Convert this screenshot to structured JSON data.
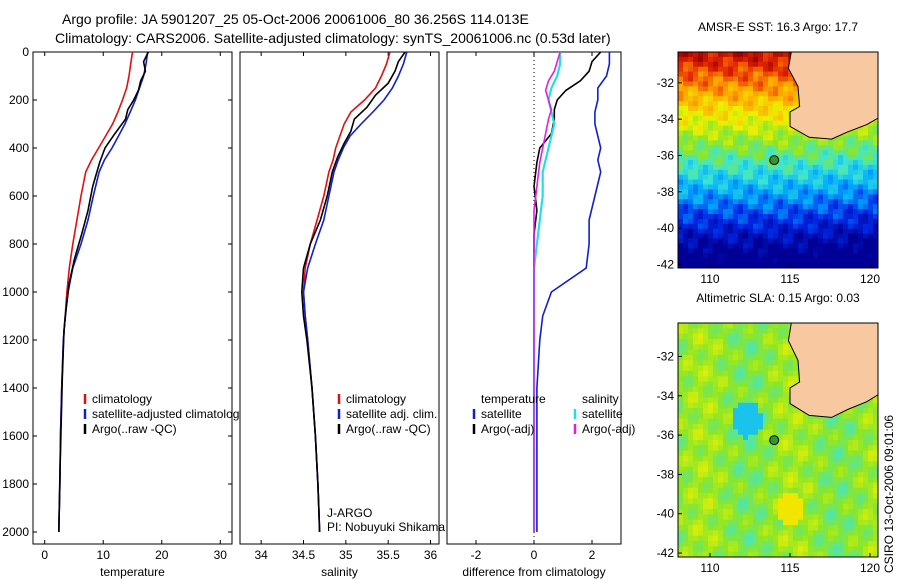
{
  "page": {
    "title_line1": "Argo profile: JA 5901207_25 05-Oct-2006 20061006_80 36.256S 114.013E",
    "title_line2": "Climatology: CARS2006. Satellite-adjusted climatology: synTS_20061006.nc (0.53d later)",
    "side_label": "CSIRO 13-Oct-2006 09:01:06",
    "credit_line1": "J-ARGO",
    "credit_line2": "PI: Nobuyuki Shikama"
  },
  "colors": {
    "climatology": "#e01010",
    "satellite": "#1020d0",
    "argo": "#000000",
    "diff_temp_sat": "#1020d0",
    "diff_temp_argo": "#000000",
    "diff_sal_sat": "#22e0e0",
    "diff_sal_argo": "#e020e0",
    "land": "#f8c8a0",
    "float_marker": "#2e9a2e"
  },
  "chart_data": [
    {
      "type": "line",
      "xlabel": "temperature",
      "ylabel": "",
      "xlim": [
        -2,
        32
      ],
      "ylim": [
        2050,
        0
      ],
      "xticks": [
        0,
        10,
        20,
        30
      ],
      "yticks": [
        0,
        200,
        400,
        600,
        800,
        1000,
        1200,
        1400,
        1600,
        1800,
        2000
      ],
      "legend": [
        "climatology",
        "satellite-adjusted climatology",
        "Argo(..raw -QC)"
      ],
      "series": [
        {
          "name": "climatology",
          "color_key": "climatology",
          "x": [
            15.0,
            14.7,
            14.4,
            14.0,
            13.3,
            12.5,
            11.6,
            10.4,
            9.2,
            8.0,
            7.0,
            6.2,
            5.5,
            4.8,
            4.2,
            3.8,
            3.5,
            3.2,
            2.9,
            2.7,
            2.6,
            2.5,
            2.4
          ],
          "y": [
            0,
            50,
            100,
            150,
            200,
            250,
            300,
            350,
            400,
            450,
            500,
            600,
            700,
            800,
            900,
            1000,
            1100,
            1200,
            1400,
            1600,
            1800,
            1900,
            2000
          ]
        },
        {
          "name": "satellite-adjusted climatology",
          "color_key": "satellite",
          "x": [
            17.6,
            17.3,
            16.9,
            16.2,
            15.5,
            14.6,
            13.7,
            12.6,
            11.5,
            10.2,
            9.3,
            8.3,
            7.4,
            6.2,
            4.8,
            4.0,
            3.5,
            3.2,
            2.9,
            2.7,
            2.6,
            2.5,
            2.4
          ],
          "y": [
            0,
            50,
            100,
            150,
            200,
            250,
            300,
            350,
            400,
            450,
            500,
            600,
            700,
            800,
            900,
            1000,
            1100,
            1200,
            1400,
            1600,
            1800,
            1900,
            2000
          ]
        },
        {
          "name": "Argo(..raw -QC)",
          "color_key": "argo",
          "x": [
            17.7,
            16.9,
            17.2,
            16.4,
            16.0,
            15.2,
            14.2,
            13.8,
            12.0,
            10.3,
            9.4,
            8.2,
            7.4,
            6.3,
            5.1,
            4.2,
            3.7,
            3.3,
            3.0,
            2.8,
            2.6,
            2.5,
            2.4
          ],
          "y": [
            0,
            40,
            80,
            120,
            160,
            200,
            240,
            280,
            340,
            400,
            460,
            560,
            660,
            760,
            860,
            960,
            1060,
            1160,
            1360,
            1560,
            1760,
            1900,
            2000
          ]
        }
      ]
    },
    {
      "type": "line",
      "xlabel": "salinity",
      "ylabel": "",
      "xlim": [
        33.75,
        36.1
      ],
      "ylim": [
        2050,
        0
      ],
      "xticks": [
        34,
        34.5,
        35,
        35.5,
        36
      ],
      "xticklabels": [
        "34",
        "34.5",
        "35",
        "35.5",
        "36"
      ],
      "legend": [
        "climatology",
        "satellite adj. clim.",
        "Argo(..raw -QC)"
      ],
      "series": [
        {
          "name": "climatology",
          "color_key": "climatology",
          "x": [
            35.52,
            35.48,
            35.42,
            35.35,
            35.22,
            35.06,
            34.98,
            34.93,
            34.88,
            34.85,
            34.8,
            34.74,
            34.66,
            34.58,
            34.52,
            34.5,
            34.52,
            34.55,
            34.6,
            34.64,
            34.67,
            34.68,
            34.69
          ],
          "y": [
            0,
            50,
            100,
            150,
            200,
            250,
            300,
            350,
            400,
            450,
            500,
            600,
            700,
            800,
            900,
            1000,
            1100,
            1200,
            1400,
            1600,
            1800,
            1900,
            2000
          ]
        },
        {
          "name": "satellite adj. clim.",
          "color_key": "satellite",
          "x": [
            35.72,
            35.68,
            35.62,
            35.55,
            35.45,
            35.32,
            35.18,
            35.05,
            34.97,
            34.91,
            34.86,
            34.8,
            34.74,
            34.64,
            34.55,
            34.5,
            34.52,
            34.55,
            34.6,
            34.64,
            34.67,
            34.68,
            34.69
          ],
          "y": [
            0,
            50,
            100,
            150,
            200,
            250,
            300,
            350,
            400,
            450,
            500,
            600,
            700,
            800,
            900,
            1000,
            1100,
            1200,
            1400,
            1600,
            1800,
            1900,
            2000
          ]
        },
        {
          "name": "Argo(..raw -QC)",
          "color_key": "argo",
          "x": [
            35.7,
            35.62,
            35.58,
            35.5,
            35.35,
            35.25,
            35.1,
            35.06,
            34.98,
            34.9,
            34.84,
            34.78,
            34.7,
            34.58,
            34.5,
            34.48,
            34.5,
            34.54,
            34.6,
            34.64,
            34.67,
            34.68,
            34.69
          ],
          "y": [
            0,
            40,
            80,
            130,
            180,
            230,
            280,
            330,
            380,
            440,
            500,
            600,
            700,
            800,
            900,
            1000,
            1100,
            1200,
            1400,
            1600,
            1800,
            1900,
            2000
          ]
        }
      ]
    },
    {
      "type": "line",
      "xlabel": "difference from climatology",
      "ylabel": "",
      "xlim": [
        -3,
        3
      ],
      "ylim": [
        2050,
        0
      ],
      "xticks": [
        -2,
        0,
        2
      ],
      "legend_left_title": "temperature",
      "legend_right_title": "salinity",
      "legend_left": [
        "satellite",
        "Argo(-adj)"
      ],
      "legend_right": [
        "satellite",
        "Argo(-adj)"
      ],
      "series": [
        {
          "name": "satellite",
          "color_key": "diff_temp_sat",
          "x": [
            2.6,
            2.6,
            2.5,
            2.2,
            2.2,
            2.1,
            2.1,
            2.2,
            2.3,
            2.2,
            2.3,
            2.1,
            1.9,
            1.9,
            1.8,
            0.6,
            0.3,
            0.2,
            0.1,
            0.1,
            0.1,
            0.1,
            0.1
          ],
          "y": [
            0,
            50,
            100,
            150,
            200,
            250,
            300,
            350,
            400,
            450,
            500,
            600,
            700,
            800,
            900,
            1000,
            1100,
            1200,
            1400,
            1600,
            1800,
            1900,
            2000
          ]
        },
        {
          "name": "Argo(-adj)",
          "color_key": "diff_temp_argo",
          "x": [
            2.3,
            2.0,
            1.9,
            1.6,
            1.1,
            0.8,
            0.7,
            0.7,
            0.6,
            0.2,
            0.1,
            0.0,
            0.1,
            0.0,
            0.0,
            0.0,
            0.0,
            0.0,
            0.0,
            0.0,
            0.0,
            0.0,
            0.0
          ],
          "y": [
            0,
            40,
            80,
            120,
            160,
            200,
            240,
            280,
            340,
            400,
            460,
            560,
            660,
            760,
            860,
            960,
            1060,
            1160,
            1360,
            1560,
            1760,
            1900,
            2000
          ]
        },
        {
          "name": "satellite",
          "color_key": "diff_sal_sat",
          "x": [
            0.9,
            0.9,
            0.8,
            0.6,
            0.5,
            0.6,
            0.7,
            0.6,
            0.5,
            0.4,
            0.3,
            0.3,
            0.2,
            0.1,
            0.0,
            0.0,
            0.0,
            0.0,
            0.0,
            0.0,
            0.0,
            0.0,
            0.0
          ],
          "y": [
            0,
            50,
            100,
            150,
            200,
            250,
            300,
            350,
            400,
            450,
            500,
            600,
            700,
            800,
            900,
            1000,
            1100,
            1200,
            1400,
            1600,
            1800,
            1900,
            2000
          ]
        },
        {
          "name": "Argo(-adj)",
          "color_key": "diff_sal_argo",
          "x": [
            0.9,
            0.8,
            0.7,
            0.5,
            0.4,
            0.5,
            0.6,
            0.5,
            0.4,
            0.3,
            0.2,
            0.1,
            0.0,
            0.0,
            0.0,
            0.0,
            0.0,
            0.0,
            0.0,
            0.0,
            0.0,
            0.0,
            0.0
          ],
          "y": [
            0,
            40,
            80,
            120,
            160,
            200,
            240,
            280,
            340,
            400,
            460,
            560,
            660,
            760,
            860,
            960,
            1060,
            1160,
            1360,
            1560,
            1760,
            1900,
            2000
          ]
        }
      ]
    },
    {
      "type": "heatmap",
      "title": "AMSR-E SST: 16.3 Argo: 17.7",
      "xlim": [
        108,
        120.5
      ],
      "ylim": [
        -42.2,
        -30.3
      ],
      "xticks": [
        110,
        115,
        120
      ],
      "yticks": [
        -32,
        -34,
        -36,
        -38,
        -40,
        -42
      ],
      "float_position": {
        "lon": 114.013,
        "lat": -36.256
      },
      "field": "sst"
    },
    {
      "type": "heatmap",
      "title": "Altimetric SLA: 0.15 Argo: 0.03",
      "xlim": [
        108,
        120.5
      ],
      "ylim": [
        -42.2,
        -30.3
      ],
      "xticks": [
        110,
        115,
        120
      ],
      "yticks": [
        -32,
        -34,
        -36,
        -38,
        -40,
        -42
      ],
      "float_position": {
        "lon": 114.013,
        "lat": -36.256
      },
      "field": "sla"
    }
  ]
}
